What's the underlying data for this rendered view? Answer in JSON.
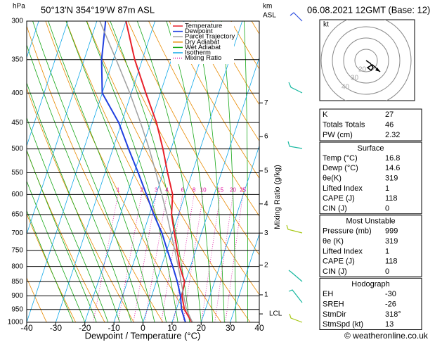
{
  "header": {
    "pressure_unit": "hPa",
    "location": "50°13'N 354°19'W 87m ASL",
    "km_unit": "km",
    "asl": "ASL",
    "datetime": "06.08.2021 12GMT (Base: 12)"
  },
  "chart_data": {
    "type": "skewt",
    "x_label": "Dewpoint / Temperature (°C)",
    "y2_label": "Mixing Ratio (g/kg)",
    "xlim": [
      -40,
      40
    ],
    "xticks": [
      -40,
      -30,
      -20,
      -10,
      0,
      10,
      20,
      30,
      40
    ],
    "ylim": [
      1000,
      300
    ],
    "yticks": [
      300,
      350,
      400,
      450,
      500,
      550,
      600,
      650,
      700,
      750,
      800,
      850,
      900,
      950,
      1000
    ],
    "log_y": true,
    "levels": [
      1000,
      950,
      900,
      850,
      800,
      750,
      700,
      650,
      600,
      550,
      500,
      450,
      400,
      350,
      300
    ],
    "series": [
      {
        "name": "Temperature",
        "color": "#e8202a",
        "values": [
          16.8,
          12.8,
          10.4,
          9.7,
          6.3,
          3.6,
          0.7,
          -2.4,
          -4.3,
          -8.5,
          -12.8,
          -18,
          -25,
          -32.6,
          -40
        ]
      },
      {
        "name": "Dewpoint",
        "color": "#1f3fe0",
        "values": [
          14.6,
          11.8,
          9.9,
          7.2,
          3.9,
          0.2,
          -3.6,
          -8.5,
          -13.3,
          -18.6,
          -24.6,
          -31,
          -40,
          -44,
          -47
        ]
      },
      {
        "name": "Parcel Trajectory",
        "color": "#a0a0a0",
        "values": [
          17,
          13.5,
          11,
          8.5,
          5.8,
          2.8,
          -0.5,
          -4,
          -8,
          -12.5,
          -17.5,
          -23.5,
          -30.5,
          -39,
          -49
        ]
      }
    ],
    "background_lines": [
      {
        "name": "Dry Adiabat",
        "color": "#e88a00"
      },
      {
        "name": "Wet Adiabat",
        "color": "#18a818"
      },
      {
        "name": "Isotherm",
        "color": "#10a8e8"
      },
      {
        "name": "Mixing Ratio",
        "color": "#e010a0"
      }
    ],
    "legend": "upper right",
    "mixing_ratios": [
      1,
      2,
      3,
      4,
      6,
      8,
      10,
      15,
      20,
      25
    ],
    "km_ticks": [
      1,
      2,
      3,
      4,
      5,
      6,
      7
    ],
    "km_pressures": [
      896,
      796,
      700,
      623,
      546,
      476,
      416
    ],
    "lcl": {
      "label": "LCL",
      "pressure": 967
    }
  },
  "hodograph": {
    "unit": "kt",
    "ring_labels": [
      "20",
      "30",
      "40"
    ]
  },
  "table": {
    "indices": [
      [
        "K",
        "27"
      ],
      [
        "Totals Totals",
        "46"
      ],
      [
        "PW (cm)",
        "2.32"
      ]
    ],
    "sections": [
      {
        "title": "Surface",
        "rows": [
          [
            "Temp (°C)",
            "16.8"
          ],
          [
            "Dewp (°C)",
            "14.6"
          ],
          [
            "θe(K)",
            "319"
          ],
          [
            "Lifted Index",
            "1"
          ],
          [
            "CAPE (J)",
            "118"
          ],
          [
            "CIN (J)",
            "0"
          ]
        ]
      },
      {
        "title": "Most Unstable",
        "rows": [
          [
            "Pressure (mb)",
            "999"
          ],
          [
            "θe (K)",
            "319"
          ],
          [
            "Lifted Index",
            "1"
          ],
          [
            "CAPE (J)",
            "118"
          ],
          [
            "CIN (J)",
            "0"
          ]
        ]
      },
      {
        "title": "Hodograph",
        "rows": [
          [
            "EH",
            "-30"
          ],
          [
            "SREH",
            "-26"
          ],
          [
            "StmDir",
            "318°"
          ],
          [
            "StmSpd (kt)",
            "13"
          ]
        ]
      }
    ]
  },
  "footer": "© weatheronline.co.uk"
}
